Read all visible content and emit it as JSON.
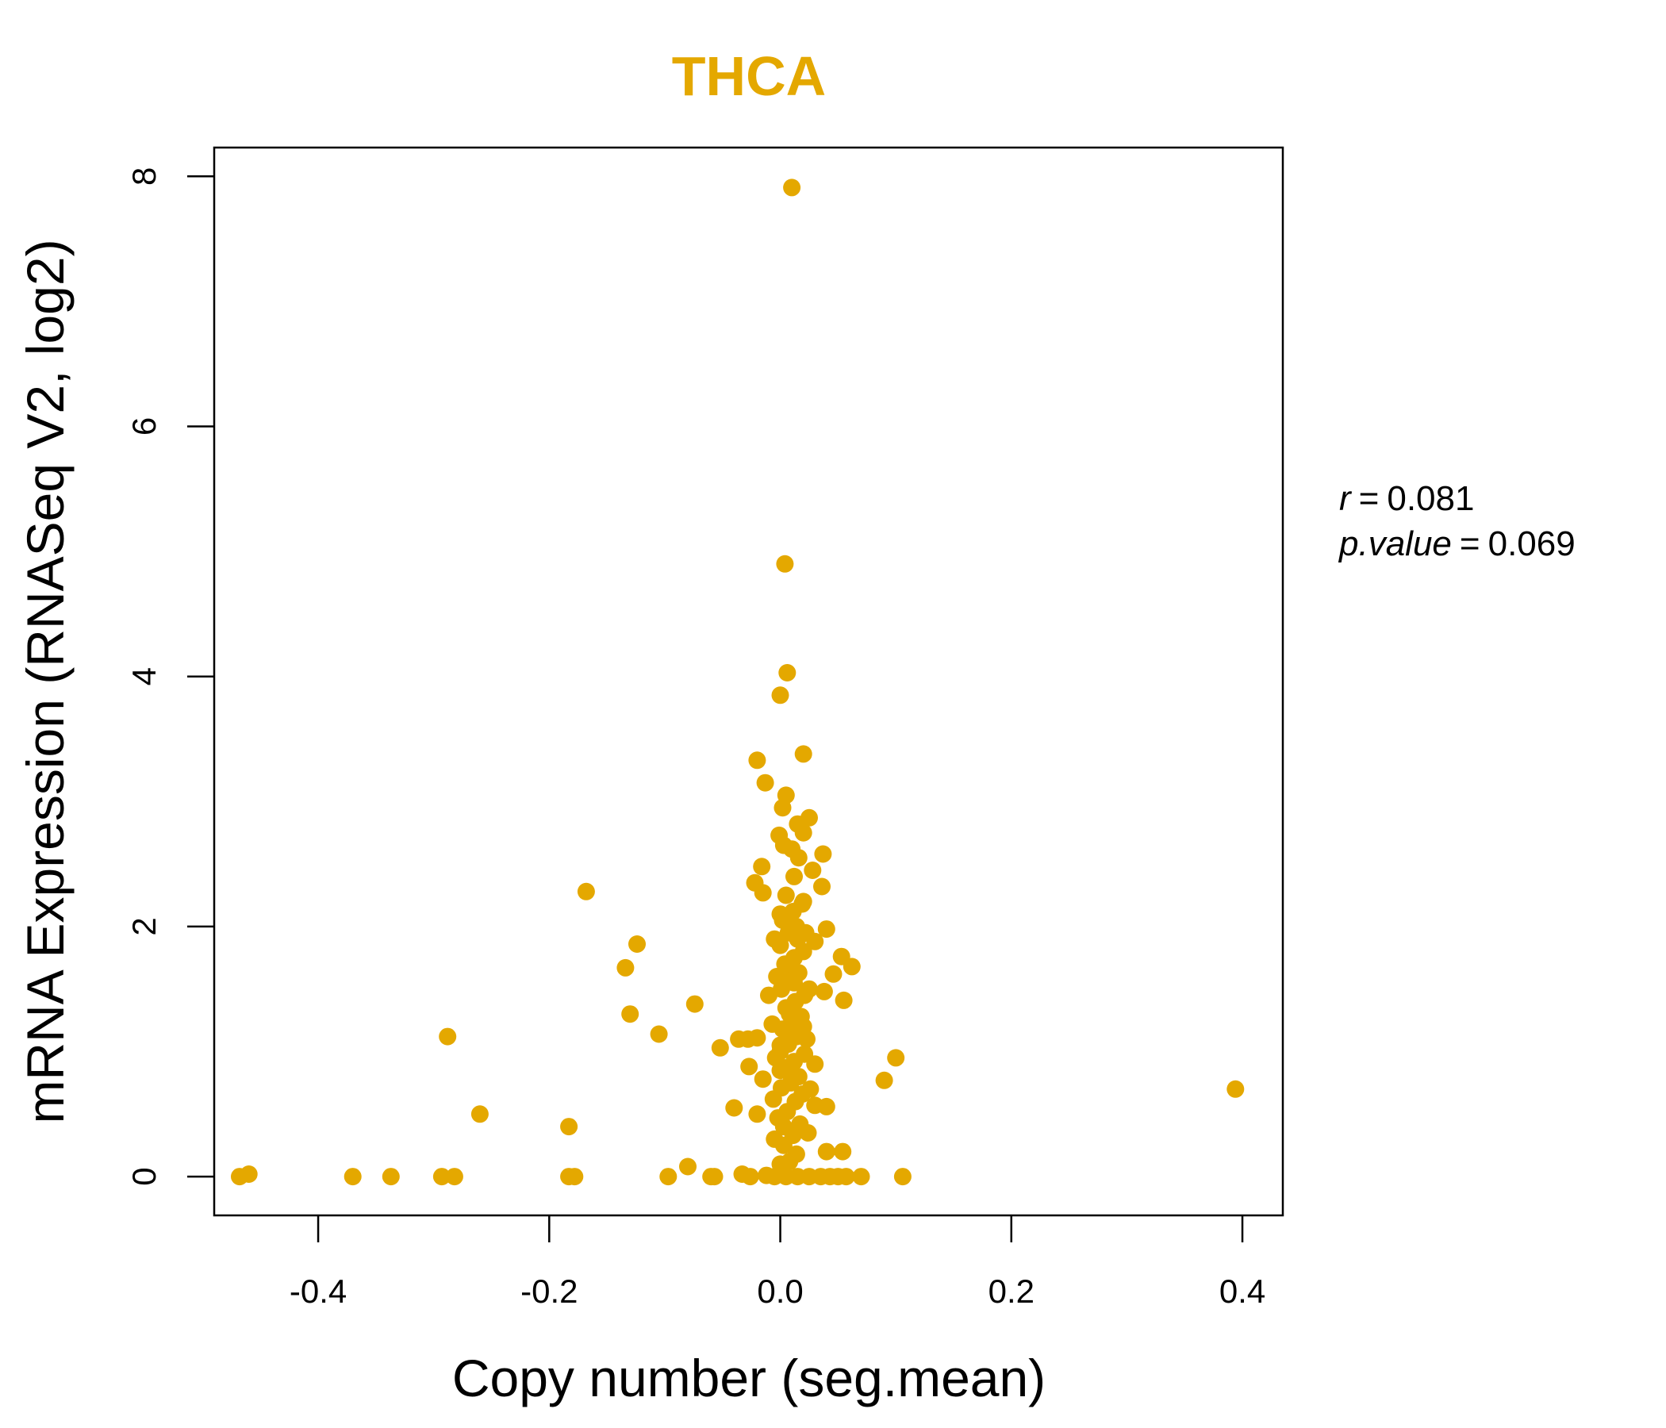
{
  "colors": {
    "accent": "#E4A800",
    "axis": "#000000",
    "background": "#FFFFFF"
  },
  "stats": {
    "r_label": "r",
    "r_value": "0.081",
    "p_label": "p.value",
    "p_value": "0.069",
    "equals": "="
  },
  "chart_data": {
    "type": "scatter",
    "title": "THCA",
    "xlabel": "Copy number (seg.mean)",
    "ylabel": "mRNA Expression (RNASeq V2, log2)",
    "xlim": [
      -0.49,
      0.435
    ],
    "ylim": [
      -0.31,
      8.23
    ],
    "xticks": [
      -0.4,
      -0.2,
      0.0,
      0.2,
      0.4
    ],
    "xtick_labels": [
      "-0.4",
      "-0.2",
      "0.0",
      "0.2",
      "0.4"
    ],
    "yticks": [
      0,
      2,
      4,
      6,
      8
    ],
    "ytick_labels": [
      "0",
      "2",
      "4",
      "6",
      "8"
    ],
    "grid": false,
    "points": [
      [
        0.01,
        7.91
      ],
      [
        0.004,
        4.9
      ],
      [
        0.006,
        4.03
      ],
      [
        0.0,
        3.85
      ],
      [
        -0.02,
        3.33
      ],
      [
        0.02,
        3.38
      ],
      [
        -0.013,
        3.15
      ],
      [
        0.005,
        3.05
      ],
      [
        0.002,
        2.95
      ],
      [
        0.025,
        2.87
      ],
      [
        0.015,
        2.82
      ],
      [
        -0.001,
        2.73
      ],
      [
        0.01,
        2.62
      ],
      [
        0.037,
        2.58
      ],
      [
        -0.016,
        2.48
      ],
      [
        0.028,
        2.45
      ],
      [
        -0.022,
        2.35
      ],
      [
        0.036,
        2.32
      ],
      [
        -0.015,
        2.27
      ],
      [
        -0.168,
        2.28
      ],
      [
        0.02,
        2.2
      ],
      [
        0.0,
        2.1
      ],
      [
        0.04,
        1.98
      ],
      [
        -0.124,
        1.86
      ],
      [
        0.015,
        1.9
      ],
      [
        0.03,
        1.88
      ],
      [
        0.053,
        1.76
      ],
      [
        0.062,
        1.68
      ],
      [
        -0.134,
        1.67
      ],
      [
        0.046,
        1.62
      ],
      [
        0.012,
        1.55
      ],
      [
        0.038,
        1.48
      ],
      [
        0.055,
        1.41
      ],
      [
        -0.01,
        1.45
      ],
      [
        -0.074,
        1.38
      ],
      [
        -0.13,
        1.3
      ],
      [
        0.008,
        1.3
      ],
      [
        0.02,
        1.2
      ],
      [
        -0.105,
        1.14
      ],
      [
        -0.288,
        1.12
      ],
      [
        -0.02,
        1.11
      ],
      [
        -0.028,
        1.1
      ],
      [
        -0.036,
        1.1
      ],
      [
        0.0,
        1.05
      ],
      [
        -0.052,
        1.03
      ],
      [
        0.1,
        0.95
      ],
      [
        0.03,
        0.9
      ],
      [
        -0.027,
        0.88
      ],
      [
        0.0,
        0.85
      ],
      [
        0.09,
        0.77
      ],
      [
        -0.015,
        0.78
      ],
      [
        0.394,
        0.7
      ],
      [
        0.03,
        0.57
      ],
      [
        0.04,
        0.56
      ],
      [
        -0.04,
        0.55
      ],
      [
        -0.02,
        0.5
      ],
      [
        -0.26,
        0.5
      ],
      [
        0.003,
        0.4
      ],
      [
        -0.183,
        0.4
      ],
      [
        0.04,
        0.2
      ],
      [
        0.054,
        0.2
      ],
      [
        -0.08,
        0.08
      ],
      [
        0.0,
        0.1
      ],
      [
        -0.468,
        0.0
      ],
      [
        -0.46,
        0.02
      ],
      [
        -0.37,
        0.0
      ],
      [
        -0.337,
        0.0
      ],
      [
        -0.293,
        0.0
      ],
      [
        -0.282,
        0.0
      ],
      [
        -0.183,
        0.0
      ],
      [
        -0.178,
        0.0
      ],
      [
        -0.097,
        0.0
      ],
      [
        -0.06,
        0.0
      ],
      [
        -0.057,
        0.0
      ],
      [
        -0.033,
        0.02
      ],
      [
        -0.026,
        0.0
      ],
      [
        -0.012,
        0.01
      ],
      [
        -0.005,
        0.0
      ],
      [
        0.005,
        0.0
      ],
      [
        0.015,
        0.0
      ],
      [
        0.025,
        0.0
      ],
      [
        0.035,
        0.0
      ],
      [
        0.043,
        0.0
      ],
      [
        0.05,
        0.0
      ],
      [
        0.057,
        0.0
      ],
      [
        0.07,
        0.0
      ],
      [
        0.106,
        0.0
      ],
      [
        0.002,
        0.05
      ],
      [
        0.008,
        0.12
      ],
      [
        0.014,
        0.18
      ],
      [
        0.003,
        0.25
      ],
      [
        0.011,
        0.33
      ],
      [
        0.017,
        0.42
      ],
      [
        -0.002,
        0.47
      ],
      [
        0.006,
        0.52
      ],
      [
        0.013,
        0.6
      ],
      [
        0.019,
        0.66
      ],
      [
        0.001,
        0.71
      ],
      [
        0.009,
        0.75
      ],
      [
        0.016,
        0.8
      ],
      [
        0.004,
        0.87
      ],
      [
        0.012,
        0.92
      ],
      [
        0.021,
        0.98
      ],
      [
        0.0,
        1.0
      ],
      [
        0.007,
        1.06
      ],
      [
        0.014,
        1.12
      ],
      [
        0.002,
        1.18
      ],
      [
        0.01,
        1.24
      ],
      [
        0.018,
        1.28
      ],
      [
        0.005,
        1.35
      ],
      [
        0.013,
        1.4
      ],
      [
        0.021,
        1.45
      ],
      [
        0.001,
        1.5
      ],
      [
        0.009,
        1.58
      ],
      [
        0.016,
        1.63
      ],
      [
        0.004,
        1.7
      ],
      [
        0.012,
        1.75
      ],
      [
        0.02,
        1.8
      ],
      [
        0.0,
        1.85
      ],
      [
        0.007,
        1.95
      ],
      [
        0.014,
        2.0
      ],
      [
        0.002,
        2.05
      ],
      [
        0.011,
        2.12
      ],
      [
        0.019,
        2.18
      ],
      [
        0.005,
        2.25
      ],
      [
        0.012,
        2.4
      ],
      [
        0.016,
        2.55
      ],
      [
        0.003,
        2.65
      ],
      [
        0.02,
        2.75
      ],
      [
        -0.005,
        0.3
      ],
      [
        -0.006,
        0.62
      ],
      [
        -0.004,
        0.95
      ],
      [
        -0.007,
        1.22
      ],
      [
        -0.003,
        1.6
      ],
      [
        -0.005,
        1.9
      ],
      [
        0.024,
        0.35
      ],
      [
        0.026,
        0.7
      ],
      [
        0.023,
        1.1
      ],
      [
        0.025,
        1.5
      ],
      [
        0.022,
        1.95
      ]
    ]
  }
}
